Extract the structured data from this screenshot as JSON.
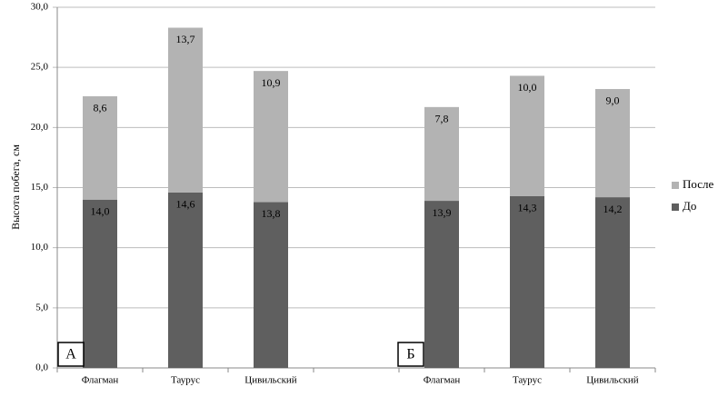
{
  "chart_data": {
    "type": "stacked_bar",
    "y_label": "Высота побега, см",
    "categories": [
      "Флагман",
      "Таурус",
      "Цивильский",
      null,
      "Флагман",
      "Таурус",
      "Цивильский"
    ],
    "series": [
      {
        "name": "До",
        "color": "#5f5f5f",
        "values": [
          14.0,
          14.6,
          13.8,
          null,
          13.9,
          14.3,
          14.2
        ],
        "value_labels": [
          "14,0",
          "14,6",
          "13,8",
          null,
          "13,9",
          "14,3",
          "14,2"
        ]
      },
      {
        "name": "После",
        "color": "#b3b3b3",
        "values": [
          8.6,
          13.7,
          10.9,
          null,
          7.8,
          10.0,
          9.0
        ],
        "value_labels": [
          "8,6",
          "13,7",
          "10,9",
          null,
          "7,8",
          "10,0",
          "9,0"
        ]
      }
    ],
    "ylim": [
      0,
      30
    ],
    "yticks": [
      {
        "value": 0,
        "label": "0,0"
      },
      {
        "value": 5,
        "label": "5,0"
      },
      {
        "value": 10,
        "label": "10,0"
      },
      {
        "value": 15,
        "label": "15,0"
      },
      {
        "value": 20,
        "label": "20,0"
      },
      {
        "value": 25,
        "label": "25,0"
      },
      {
        "value": 30,
        "label": "30,0"
      }
    ],
    "grid": true,
    "legend": "right",
    "annotations": [
      "А",
      "Б"
    ]
  }
}
